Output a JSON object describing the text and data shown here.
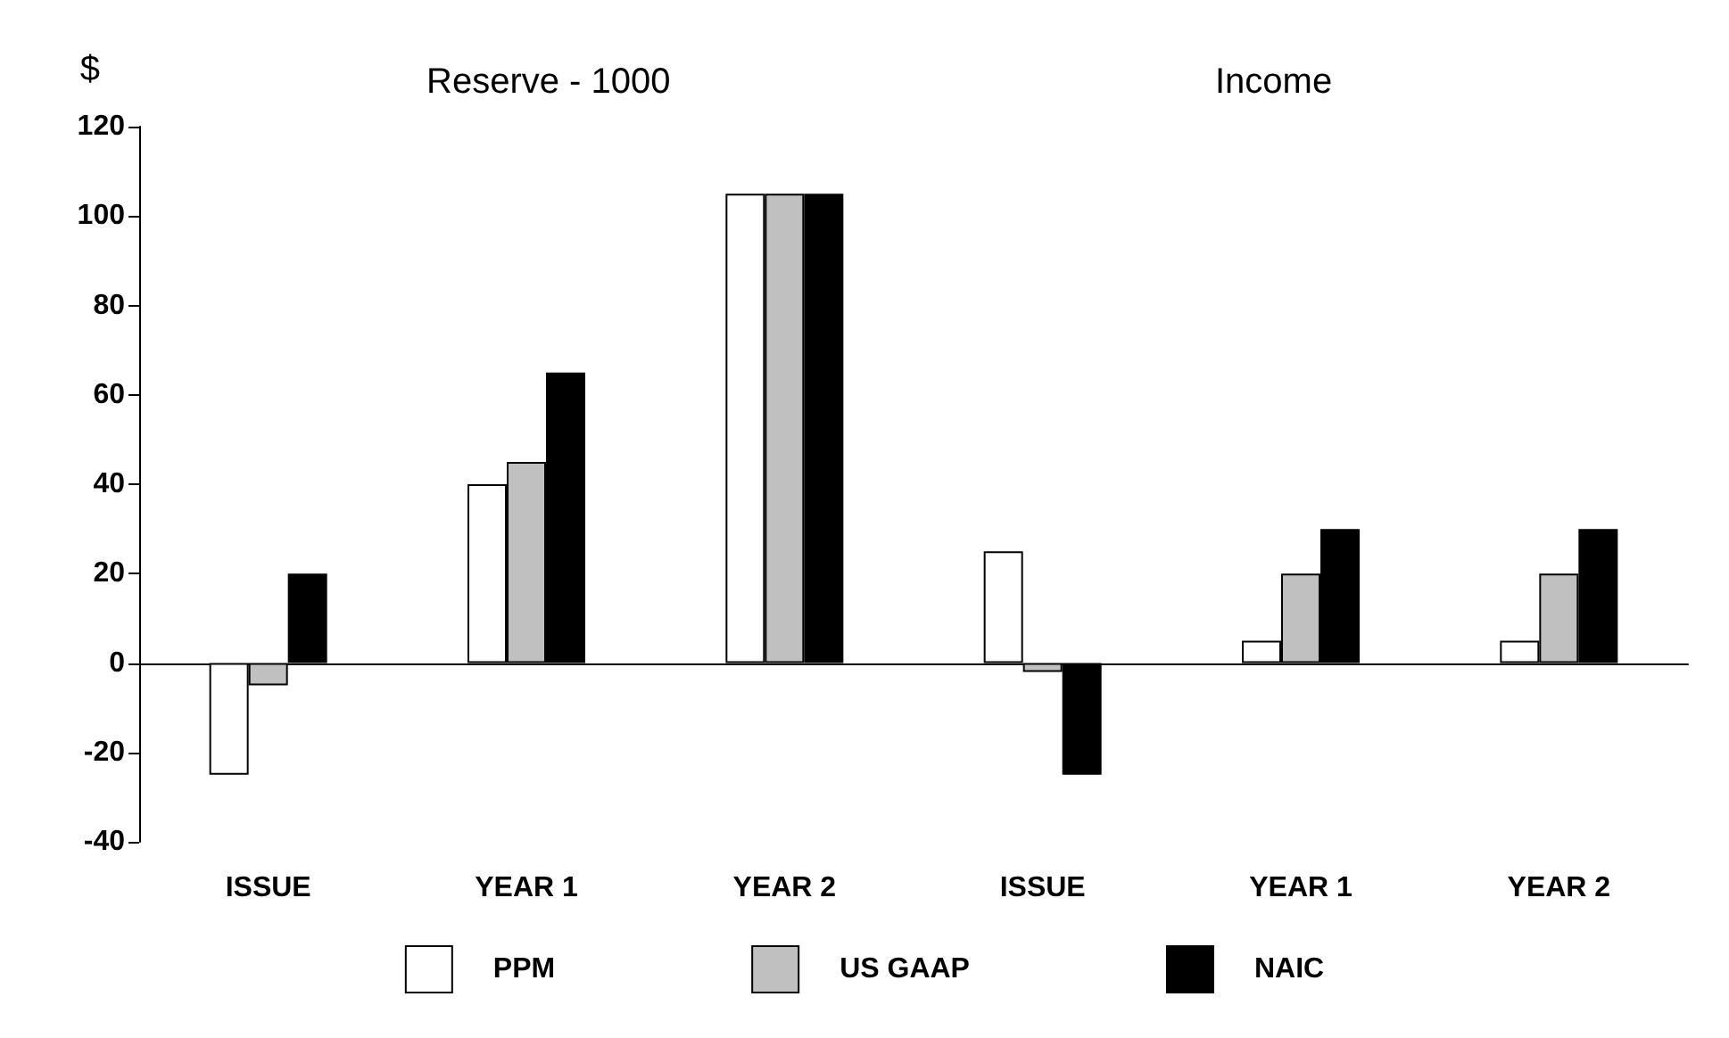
{
  "chart_data": {
    "type": "bar",
    "ylabel": "$",
    "annotations": [
      "Reserve - 1000",
      "Income"
    ],
    "categories": [
      "ISSUE",
      "YEAR 1",
      "YEAR 2",
      "ISSUE",
      "YEAR 1",
      "YEAR 2"
    ],
    "series": [
      {
        "name": "PPM",
        "color": "#ffffff",
        "values": [
          -25,
          40,
          105,
          25,
          5,
          5
        ]
      },
      {
        "name": "US GAAP",
        "color": "#c0c0c0",
        "values": [
          -5,
          45,
          105,
          -2,
          20,
          20
        ]
      },
      {
        "name": "NAIC",
        "color": "#000000",
        "values": [
          20,
          65,
          105,
          -25,
          30,
          30
        ]
      }
    ],
    "ylim": [
      -40,
      120
    ],
    "yticks": [
      -40,
      -20,
      0,
      20,
      40,
      60,
      80,
      100,
      120
    ],
    "legend": "bottom"
  }
}
